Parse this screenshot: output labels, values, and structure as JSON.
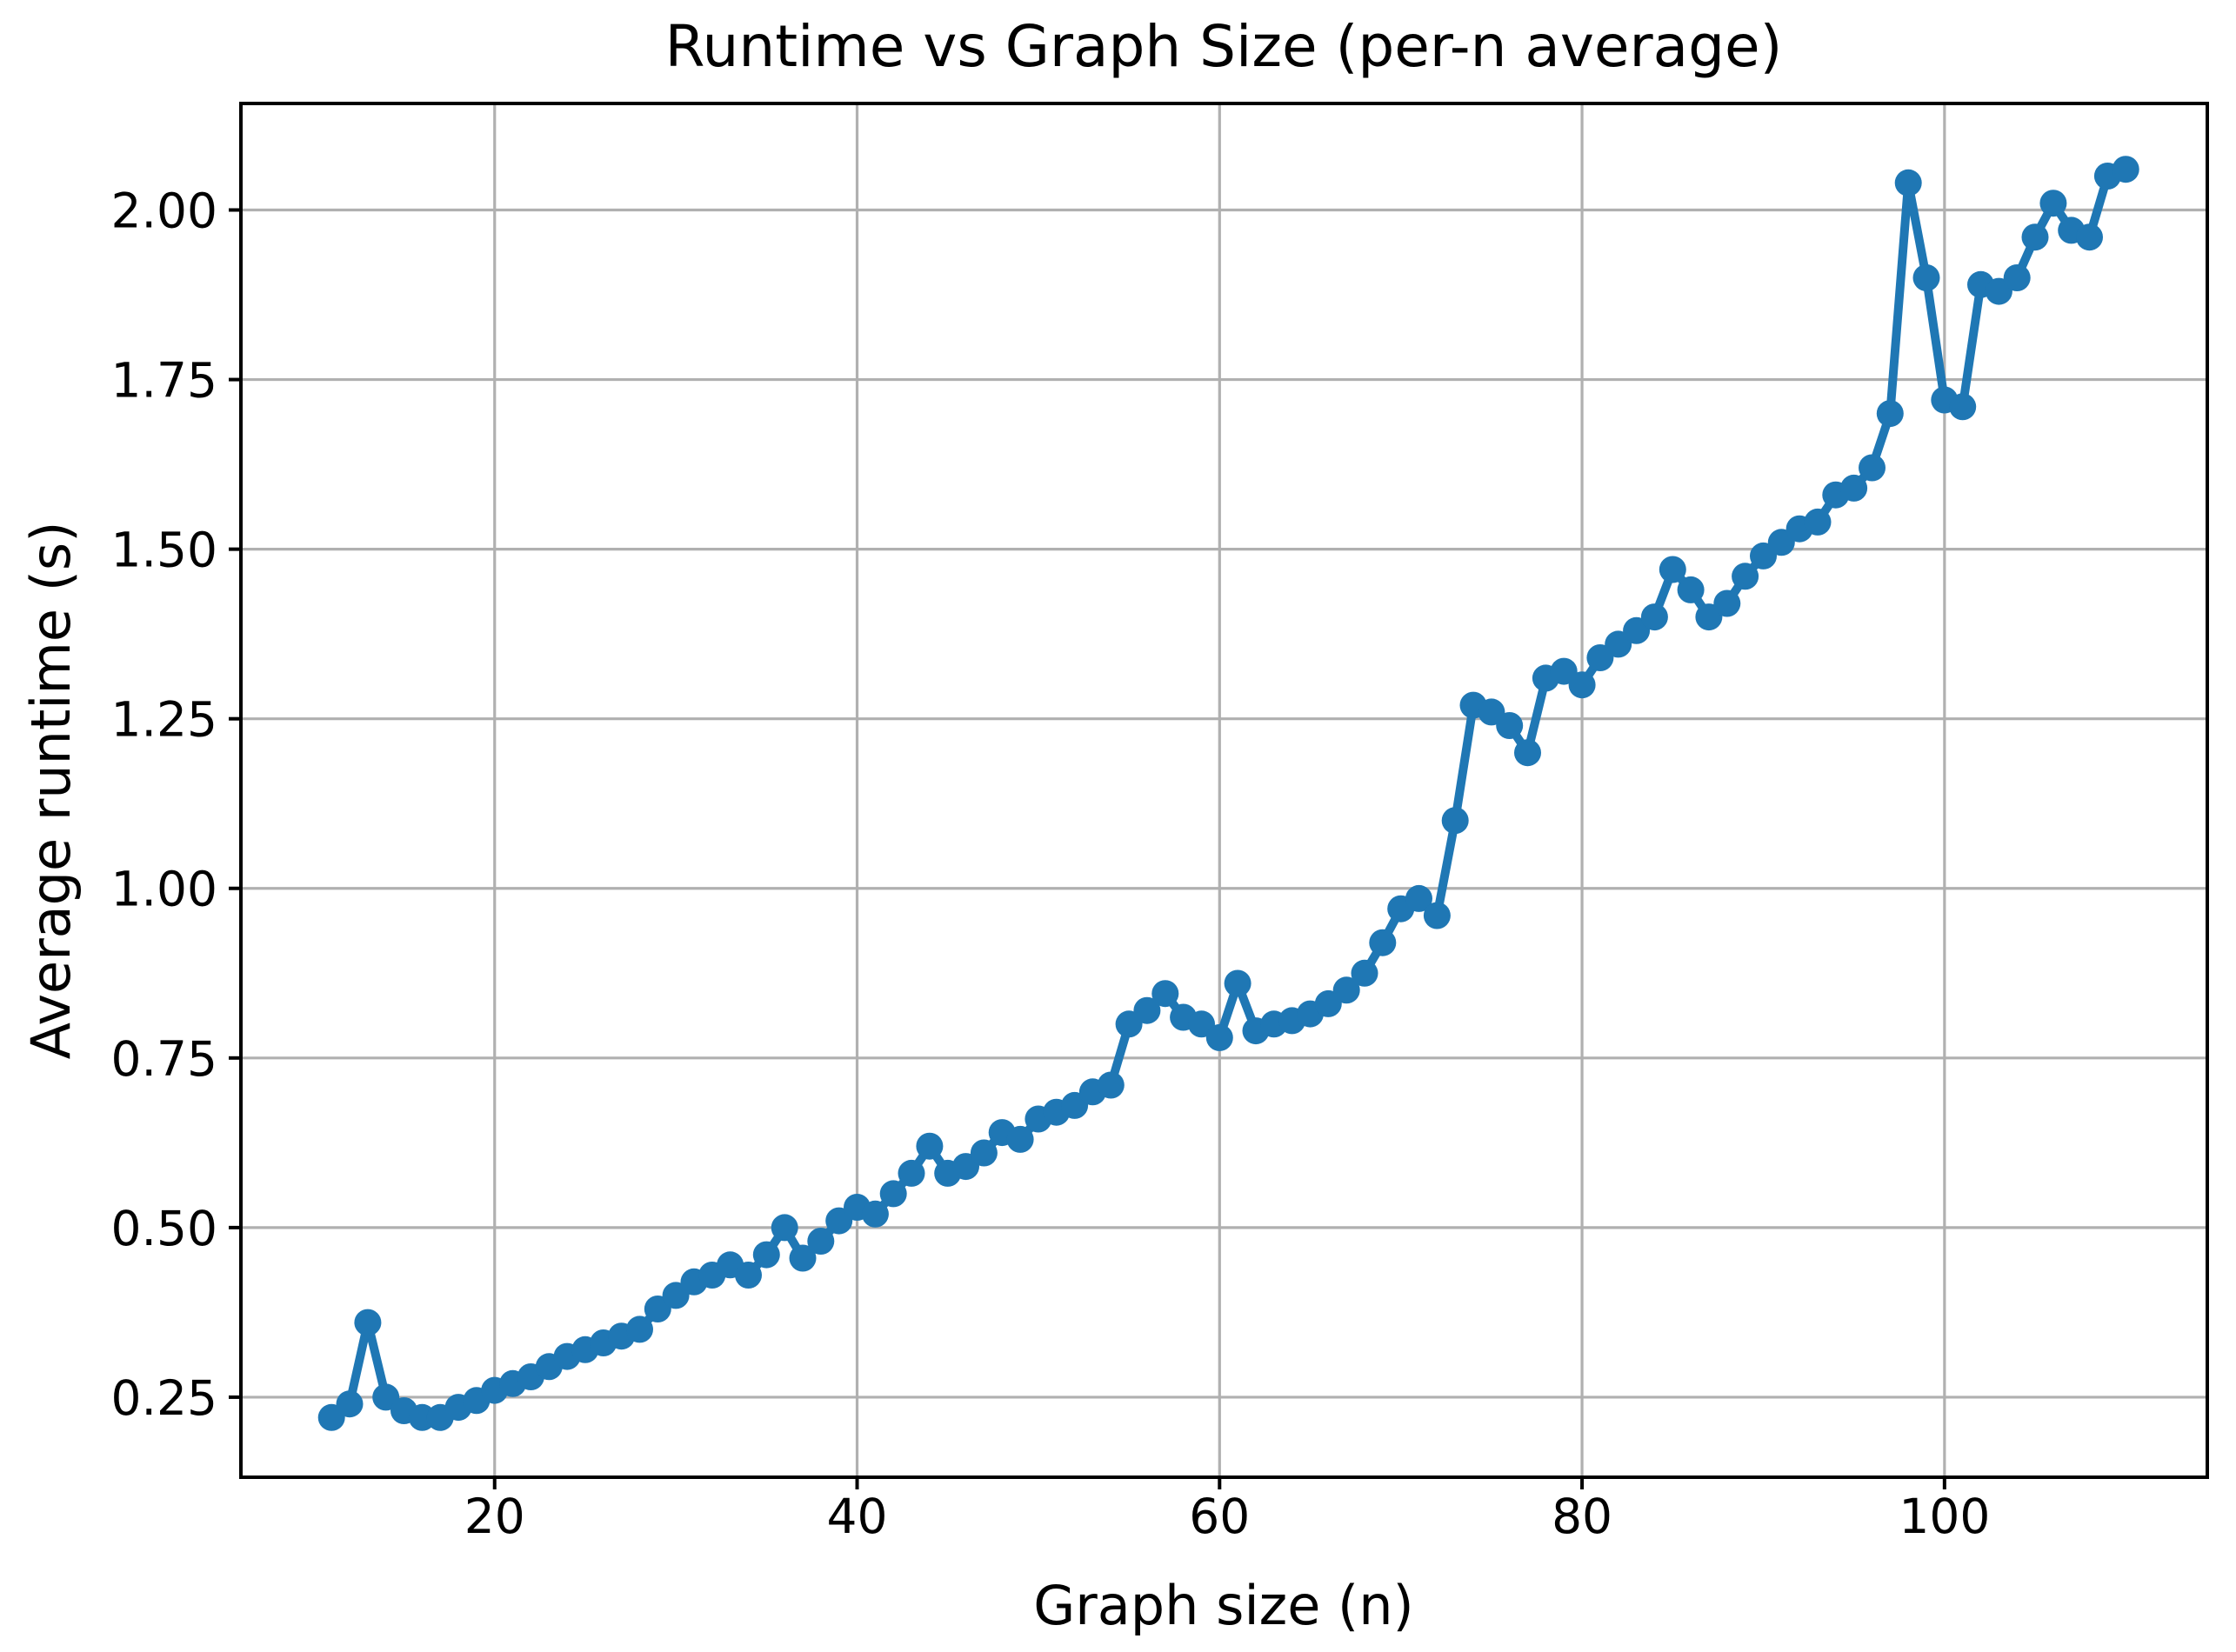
{
  "page": {
    "background": "#ffffff"
  },
  "chart_data": {
    "type": "line",
    "title": "Runtime vs Graph Size (per-n average)",
    "xlabel": "Graph size (n)",
    "ylabel": "Average runtime (s)",
    "series": [
      {
        "name": "average-runtime",
        "x": [
          11,
          12,
          13,
          14,
          15,
          16,
          17,
          18,
          19,
          20,
          21,
          22,
          23,
          24,
          25,
          26,
          27,
          28,
          29,
          30,
          31,
          32,
          33,
          34,
          35,
          36,
          37,
          38,
          39,
          40,
          41,
          42,
          43,
          44,
          45,
          46,
          47,
          48,
          49,
          50,
          51,
          52,
          53,
          54,
          55,
          56,
          57,
          58,
          59,
          60,
          61,
          62,
          63,
          64,
          65,
          66,
          67,
          68,
          69,
          70,
          71,
          72,
          73,
          74,
          75,
          76,
          77,
          78,
          79,
          80,
          81,
          82,
          83,
          84,
          85,
          86,
          87,
          88,
          89,
          90,
          91,
          92,
          93,
          94,
          95,
          96,
          97,
          98,
          99,
          100,
          101,
          102,
          103,
          104,
          105,
          106,
          107,
          108,
          109,
          110
        ],
        "y": [
          0.22,
          0.24,
          0.36,
          0.25,
          0.23,
          0.22,
          0.22,
          0.235,
          0.245,
          0.26,
          0.27,
          0.28,
          0.295,
          0.31,
          0.32,
          0.33,
          0.34,
          0.35,
          0.38,
          0.4,
          0.42,
          0.43,
          0.445,
          0.43,
          0.46,
          0.5,
          0.455,
          0.48,
          0.51,
          0.53,
          0.52,
          0.55,
          0.58,
          0.62,
          0.58,
          0.59,
          0.61,
          0.64,
          0.63,
          0.66,
          0.67,
          0.68,
          0.7,
          0.71,
          0.8,
          0.82,
          0.845,
          0.81,
          0.8,
          0.78,
          0.86,
          0.79,
          0.8,
          0.805,
          0.815,
          0.83,
          0.85,
          0.875,
          0.92,
          0.97,
          0.985,
          0.96,
          1.1,
          1.27,
          1.26,
          1.24,
          1.2,
          1.31,
          1.32,
          1.3,
          1.34,
          1.36,
          1.38,
          1.4,
          1.47,
          1.44,
          1.4,
          1.42,
          1.46,
          1.49,
          1.51,
          1.53,
          1.54,
          1.58,
          1.59,
          1.62,
          1.7,
          2.04,
          1.9,
          1.72,
          1.71,
          1.89,
          1.88,
          1.9,
          1.96,
          2.01,
          1.97,
          1.96,
          2.05,
          2.06
        ]
      }
    ],
    "xlim": [
      6.0,
      114.5
    ],
    "ylim": [
      0.132,
      2.157
    ],
    "xticks": [
      20,
      40,
      60,
      80,
      100
    ],
    "yticks": [
      0.25,
      0.5,
      0.75,
      1.0,
      1.25,
      1.5,
      1.75,
      2.0
    ],
    "ytick_decimals": 2,
    "grid": true,
    "legend": false,
    "marker": "circle",
    "line_color": "#1f77b4",
    "marker_color": "#1f77b4",
    "grid_color": "#b0b0b0",
    "axis_color": "#000000",
    "text_color": "#000000",
    "background": "#ffffff"
  }
}
